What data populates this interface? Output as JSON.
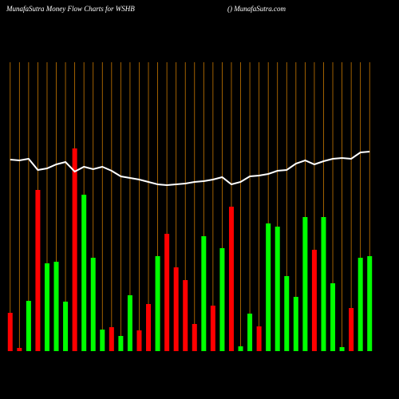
{
  "chart_data": {
    "type": "bar",
    "title": "MunafaSutra  Money Flow  Charts for WSHB",
    "subtitle": "() MunafaSutra.com",
    "values": [
      48,
      4,
      63,
      202,
      110,
      112,
      62,
      254,
      196,
      117,
      27,
      30,
      19,
      70,
      26,
      59,
      119,
      147,
      105,
      89,
      34,
      144,
      57,
      129,
      181,
      6,
      47,
      31,
      160,
      156,
      94,
      68,
      168,
      127,
      168,
      85,
      5,
      54,
      117,
      119
    ],
    "bar_colors": [
      "#ff0000",
      "#ff0000",
      "#00ff00",
      "#ff0000",
      "#00ff00",
      "#00ff00",
      "#00ff00",
      "#ff0000",
      "#00ff00",
      "#00ff00",
      "#00ff00",
      "#ff0000",
      "#00ff00",
      "#00ff00",
      "#ff0000",
      "#ff0000",
      "#00ff00",
      "#ff0000",
      "#ff0000",
      "#ff0000",
      "#ff0000",
      "#00ff00",
      "#ff0000",
      "#00ff00",
      "#ff0000",
      "#00ff00",
      "#00ff00",
      "#ff0000",
      "#00ff00",
      "#00ff00",
      "#00ff00",
      "#00ff00",
      "#00ff00",
      "#ff0000",
      "#00ff00",
      "#00ff00",
      "#00ff00",
      "#ff0000",
      "#00ff00",
      "#00ff00"
    ],
    "line_values": [
      240,
      239,
      241,
      227,
      229,
      234,
      237,
      225,
      231,
      228,
      231,
      226,
      219,
      217,
      215,
      212,
      209,
      208,
      209,
      210,
      212,
      213,
      215,
      218,
      209,
      212,
      219,
      220,
      222,
      226,
      227,
      235,
      239,
      234,
      238,
      241,
      242,
      241,
      249,
      250
    ],
    "line_color": "#ffffff"
  }
}
